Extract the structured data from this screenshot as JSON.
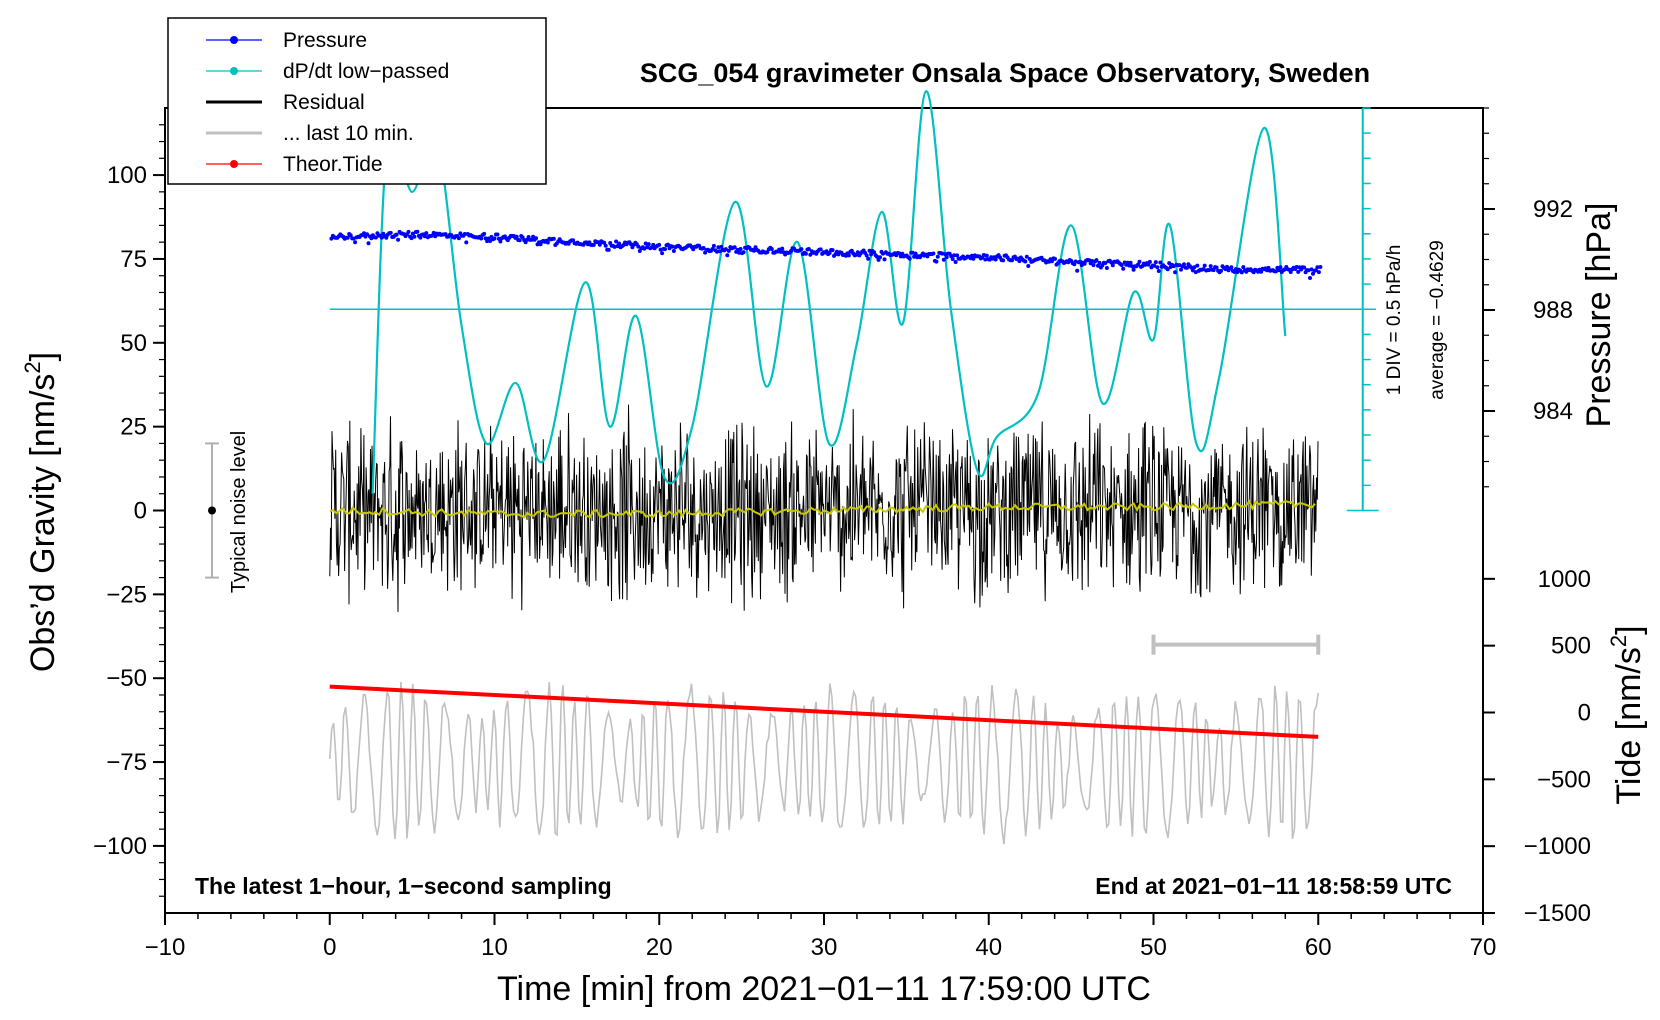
{
  "chart_data": {
    "type": "line",
    "title": "SCG_054 gravimeter Onsala Space Observatory, Sweden",
    "xlabel": "Time [min] from 2021−01−11 17:59:00 UTC",
    "ylabel_main": "Obs’d Gravity [nm/s",
    "ylabel_main_sup": "2",
    "ylabel_main_end": "]",
    "ylabel_pressure": "Pressure [hPa]",
    "ylabel_tide": "Tide [nm/s",
    "ylabel_tide_sup": "2",
    "ylabel_tide_end": "]",
    "xlim": [
      -10,
      70
    ],
    "ylim": [
      -120,
      120
    ],
    "xticks": [
      -10,
      0,
      10,
      20,
      30,
      40,
      50,
      60,
      70
    ],
    "xtick_labels": [
      "−10",
      "0",
      "10",
      "20",
      "30",
      "40",
      "50",
      "60",
      "70"
    ],
    "yticks": [
      100,
      75,
      50,
      25,
      0,
      -25,
      -50,
      -75,
      -100
    ],
    "ytick_labels": [
      "100",
      "75",
      "50",
      "25",
      "0",
      "−25",
      "−50",
      "−75",
      "−100"
    ],
    "pressure_ticks": [
      992,
      988,
      984
    ],
    "pressure_tick_labels": [
      "992",
      "988",
      "984"
    ],
    "pressure_range_hpa": [
      980,
      996
    ],
    "tide_ticks": [
      1000,
      500,
      0,
      -500,
      -1000,
      -1500
    ],
    "tide_tick_labels": [
      "1000",
      "500",
      "0",
      "−500",
      "−1000",
      "−1500"
    ],
    "tide_range": [
      -1500,
      1500
    ],
    "legend": {
      "position": "top-left",
      "entries": [
        {
          "label": "Pressure",
          "color": "#0000ff",
          "marker": true
        },
        {
          "label": "dP/dt low−passed",
          "color": "#00c0c0",
          "marker": true
        },
        {
          "label": "Residual",
          "color": "#000000",
          "marker": false
        },
        {
          "label": "... last 10 min.",
          "color": "#c0c0c0",
          "marker": false
        },
        {
          "label": "Theor.Tide",
          "color": "#ff0000",
          "marker": true
        }
      ]
    },
    "annotations": {
      "bottom_left": "The latest 1−hour, 1−second sampling",
      "bottom_right": "End at 2021−01−11 18:58:59 UTC",
      "noise_label": "Typical noise level",
      "div_label": "1 DIV = 0.5 hPa/h",
      "average_label": "average = −0.4629"
    },
    "noise_level_range": [
      -20,
      20
    ],
    "series": [
      {
        "name": "Pressure",
        "unit": "hPa",
        "color": "#0000ff",
        "x": [
          0,
          5,
          10,
          15,
          20,
          25,
          30,
          35,
          40,
          45,
          50,
          55,
          60
        ],
        "values": [
          990.9,
          991.0,
          990.9,
          990.7,
          990.5,
          990.4,
          990.3,
          990.2,
          990.1,
          989.9,
          989.8,
          989.6,
          989.6
        ]
      },
      {
        "name": "dP/dt low-passed",
        "unit": "nm/s2-scale",
        "color": "#00c0c0",
        "x": [
          2.6,
          3.5,
          5.0,
          6.5,
          8.0,
          9.5,
          11.3,
          13.0,
          15.5,
          17.0,
          18.6,
          20.3,
          22.0,
          24.6,
          26.5,
          28.4,
          30.3,
          32.0,
          33.5,
          34.8,
          36.2,
          37.7,
          39.3,
          40.5,
          43.0,
          45.0,
          46.9,
          48.8,
          50.0,
          51.0,
          52.6,
          54.0,
          56.7,
          58.0
        ],
        "values": [
          5,
          110,
          95,
          110,
          55,
          20,
          38,
          15,
          68,
          25,
          58,
          10,
          25,
          92,
          37,
          80,
          20,
          50,
          89,
          56,
          125,
          60,
          12,
          22,
          35,
          85,
          32,
          65,
          51,
          85,
          20,
          40,
          114,
          52
        ]
      },
      {
        "name": "Residual",
        "unit": "nm/s2",
        "color": "#000000",
        "x": [
          0,
          60
        ],
        "values": [
          0,
          0
        ],
        "amplitude": 25
      },
      {
        "name": "Residual smoothed",
        "unit": "nm/s2",
        "color": "#c8c800",
        "x": [
          0,
          10,
          20,
          30,
          40,
          50,
          60
        ],
        "values": [
          0,
          -1,
          -1,
          0,
          1,
          1,
          2
        ]
      },
      {
        "name": "... last 10 min.",
        "unit": "nm/s2",
        "color": "#c0c0c0",
        "x": [
          0,
          60
        ],
        "values": [
          -75,
          -75
        ],
        "amplitude": 22
      },
      {
        "name": "Theor.Tide",
        "unit": "nm/s2",
        "color": "#ff0000",
        "x": [
          0,
          60
        ],
        "values": [
          -52.5,
          -67.5
        ]
      }
    ],
    "last10_range": [
      50,
      60
    ]
  }
}
